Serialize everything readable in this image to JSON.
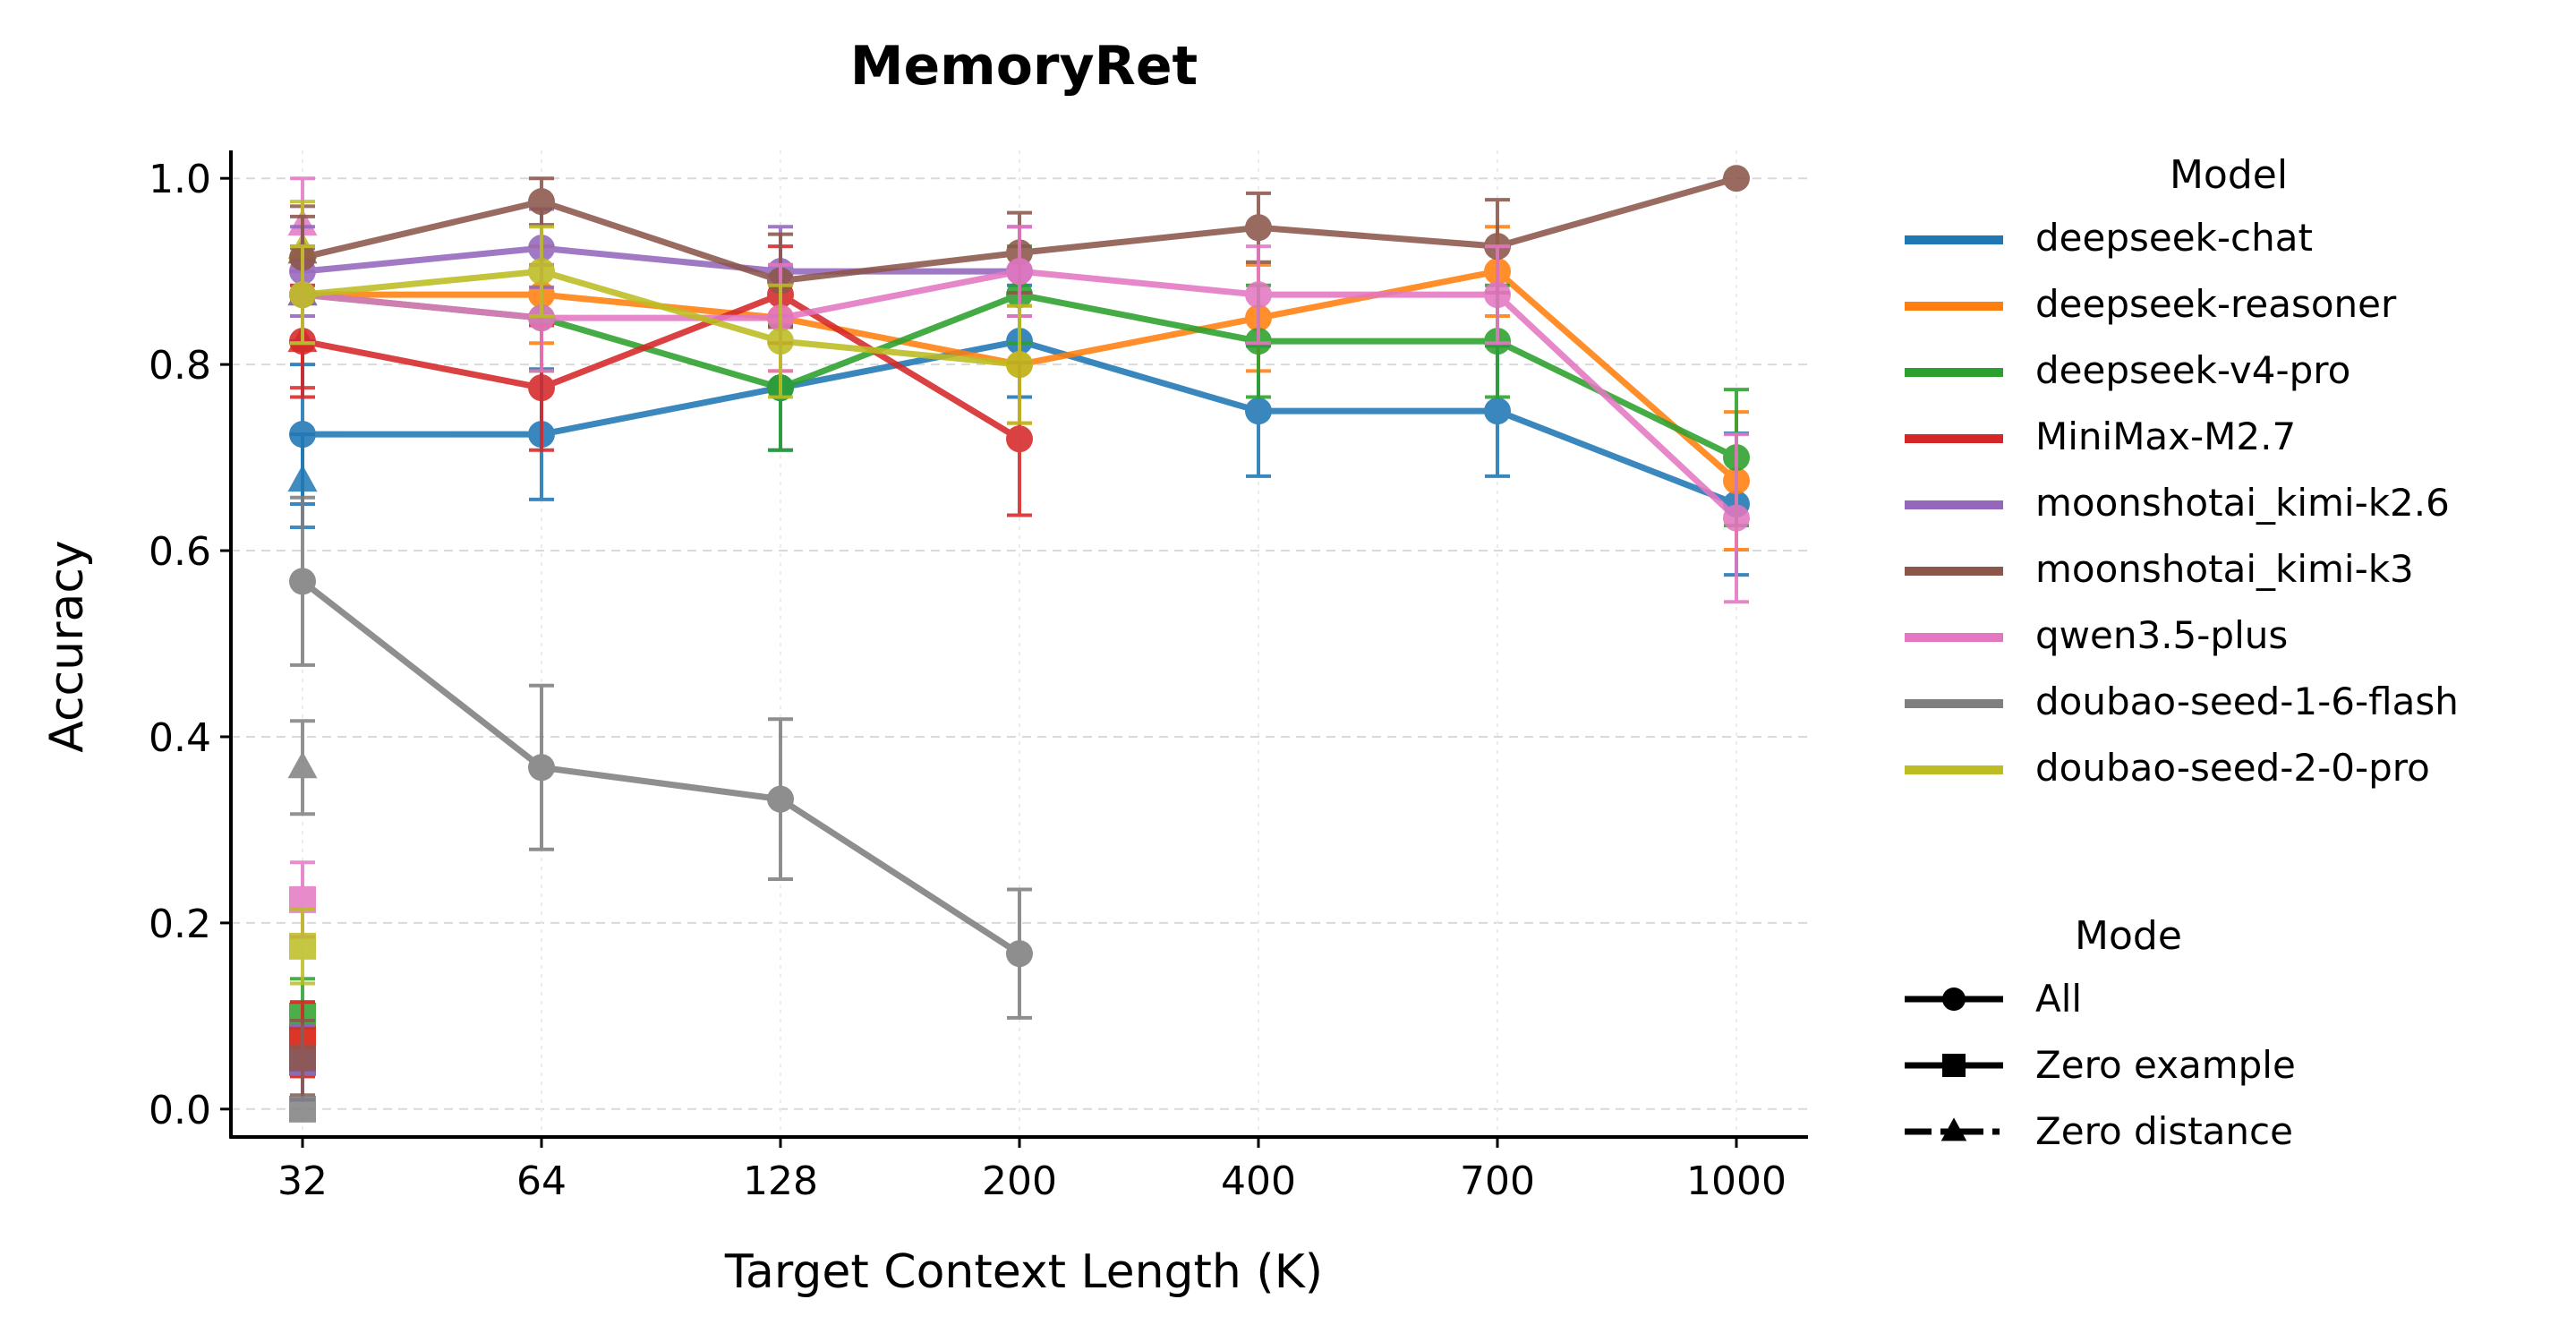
{
  "chart_data": {
    "type": "line",
    "title": "MemoryRet",
    "xlabel": "Target Context Length (K)",
    "ylabel": "Accuracy",
    "categories": [
      "32",
      "64",
      "128",
      "200",
      "400",
      "700",
      "1000"
    ],
    "ylim": [
      -0.03,
      1.03
    ],
    "yticks": [
      "0.0",
      "0.2",
      "0.4",
      "0.6",
      "0.8",
      "1.0"
    ],
    "grid": true,
    "legend_placement": "right",
    "legend_model_title": "Model",
    "legend_mode_title": "Mode",
    "modes": [
      {
        "name": "All",
        "marker": "circle"
      },
      {
        "name": "Zero example",
        "marker": "square"
      },
      {
        "name": "Zero distance",
        "marker": "triangle"
      }
    ],
    "series": [
      {
        "name": "deepseek-chat",
        "color": "#1f77b4",
        "all": [
          0.725,
          0.725,
          0.775,
          0.825,
          0.75,
          0.75,
          0.65
        ],
        "err": [
          0.075,
          0.07,
          0.067,
          0.06,
          0.07,
          0.07,
          0.076
        ],
        "zero_example": 0.05,
        "zero_distance": 0.675
      },
      {
        "name": "deepseek-reasoner",
        "color": "#ff7f0e",
        "all": [
          0.875,
          0.875,
          0.85,
          0.8,
          0.85,
          0.9,
          0.675
        ],
        "err": [
          0.052,
          0.052,
          0.057,
          0.063,
          0.057,
          0.048,
          0.074
        ],
        "zero_example": 0.075,
        "zero_distance": 0.875
      },
      {
        "name": "deepseek-v4-pro",
        "color": "#2ca02c",
        "all": [
          0.875,
          0.85,
          0.775,
          0.875,
          0.825,
          0.825,
          0.7
        ],
        "err": [
          0.052,
          0.057,
          0.067,
          0.052,
          0.06,
          0.06,
          0.073
        ],
        "zero_example": 0.1,
        "zero_distance": 0.875
      },
      {
        "name": "MiniMax-M2.7",
        "color": "#d62728",
        "all": [
          0.825,
          0.775,
          0.875,
          0.72,
          null,
          null,
          null
        ],
        "err": [
          0.06,
          0.067,
          0.052,
          0.082,
          null,
          null,
          null
        ],
        "zero_example": 0.075,
        "zero_distance": 0.825
      },
      {
        "name": "moonshotai_kimi-k2.6",
        "color": "#9467bd",
        "all": [
          0.9,
          0.925,
          0.9,
          0.9,
          null,
          null,
          null
        ],
        "err": [
          0.048,
          0.042,
          0.048,
          0.048,
          null,
          null,
          null
        ],
        "zero_example": 0.05,
        "zero_distance": 0.875
      },
      {
        "name": "moonshotai_kimi-k3",
        "color": "#8c564b",
        "all": [
          0.915,
          0.975,
          0.89,
          0.92,
          0.947,
          0.927,
          1.0
        ],
        "err": [
          0.044,
          0.025,
          0.05,
          0.043,
          0.037,
          0.05,
          0
        ],
        "zero_example": 0.055,
        "zero_distance": 0.92
      },
      {
        "name": "qwen3.5-plus",
        "color": "#e377c2",
        "all": [
          0.875,
          0.85,
          0.85,
          0.9,
          0.875,
          0.875,
          0.635
        ],
        "err": [
          0.052,
          0.057,
          0.057,
          0.048,
          0.052,
          0.052,
          0.09
        ],
        "zero_example": 0.225,
        "zero_distance": 0.95
      },
      {
        "name": "doubao-seed-1-6-flash",
        "color": "#7f7f7f",
        "all": [
          0.567,
          0.367,
          0.333,
          0.167,
          null,
          null,
          null
        ],
        "err": [
          0.09,
          0.088,
          0.086,
          0.069,
          null,
          null,
          null
        ],
        "zero_example": 0.0,
        "zero_distance": 0.367
      },
      {
        "name": "doubao-seed-2-0-pro",
        "color": "#bcbd22",
        "all": [
          0.875,
          0.9,
          0.825,
          0.8,
          null,
          null,
          null
        ],
        "err": [
          0.052,
          0.048,
          0.06,
          0.063,
          null,
          null,
          null
        ],
        "zero_example": 0.175,
        "zero_distance": 0.925
      }
    ]
  }
}
